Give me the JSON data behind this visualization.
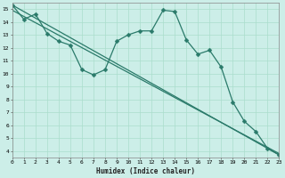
{
  "xlabel": "Humidex (Indice chaleur)",
  "xlim": [
    0,
    23
  ],
  "ylim": [
    3.5,
    15.5
  ],
  "xticks": [
    0,
    1,
    2,
    3,
    4,
    5,
    6,
    7,
    8,
    9,
    10,
    11,
    12,
    13,
    14,
    15,
    16,
    17,
    18,
    19,
    20,
    21,
    22,
    23
  ],
  "yticks": [
    4,
    5,
    6,
    7,
    8,
    9,
    10,
    11,
    12,
    13,
    14,
    15
  ],
  "background_color": "#cceee8",
  "grid_color": "#aaddcc",
  "line_color": "#2a7a6a",
  "line1_x": [
    0,
    1,
    2,
    3,
    4,
    5,
    6,
    7,
    8,
    9,
    10,
    11,
    12,
    13,
    14,
    15,
    16,
    17,
    18,
    19,
    20,
    21,
    22,
    23
  ],
  "line1_y": [
    15.3,
    14.2,
    14.6,
    13.1,
    12.5,
    12.2,
    10.3,
    9.9,
    10.3,
    12.5,
    13.0,
    13.3,
    13.3,
    14.9,
    14.8,
    12.6,
    11.5,
    11.8,
    10.5,
    7.8,
    6.3,
    5.5,
    4.2,
    3.7
  ],
  "line2_x": [
    0,
    23
  ],
  "line2_y": [
    15.3,
    3.7
  ],
  "line3_x": [
    0,
    23
  ],
  "line3_y": [
    14.9,
    3.8
  ],
  "markersize": 2.5,
  "linewidth": 0.9
}
